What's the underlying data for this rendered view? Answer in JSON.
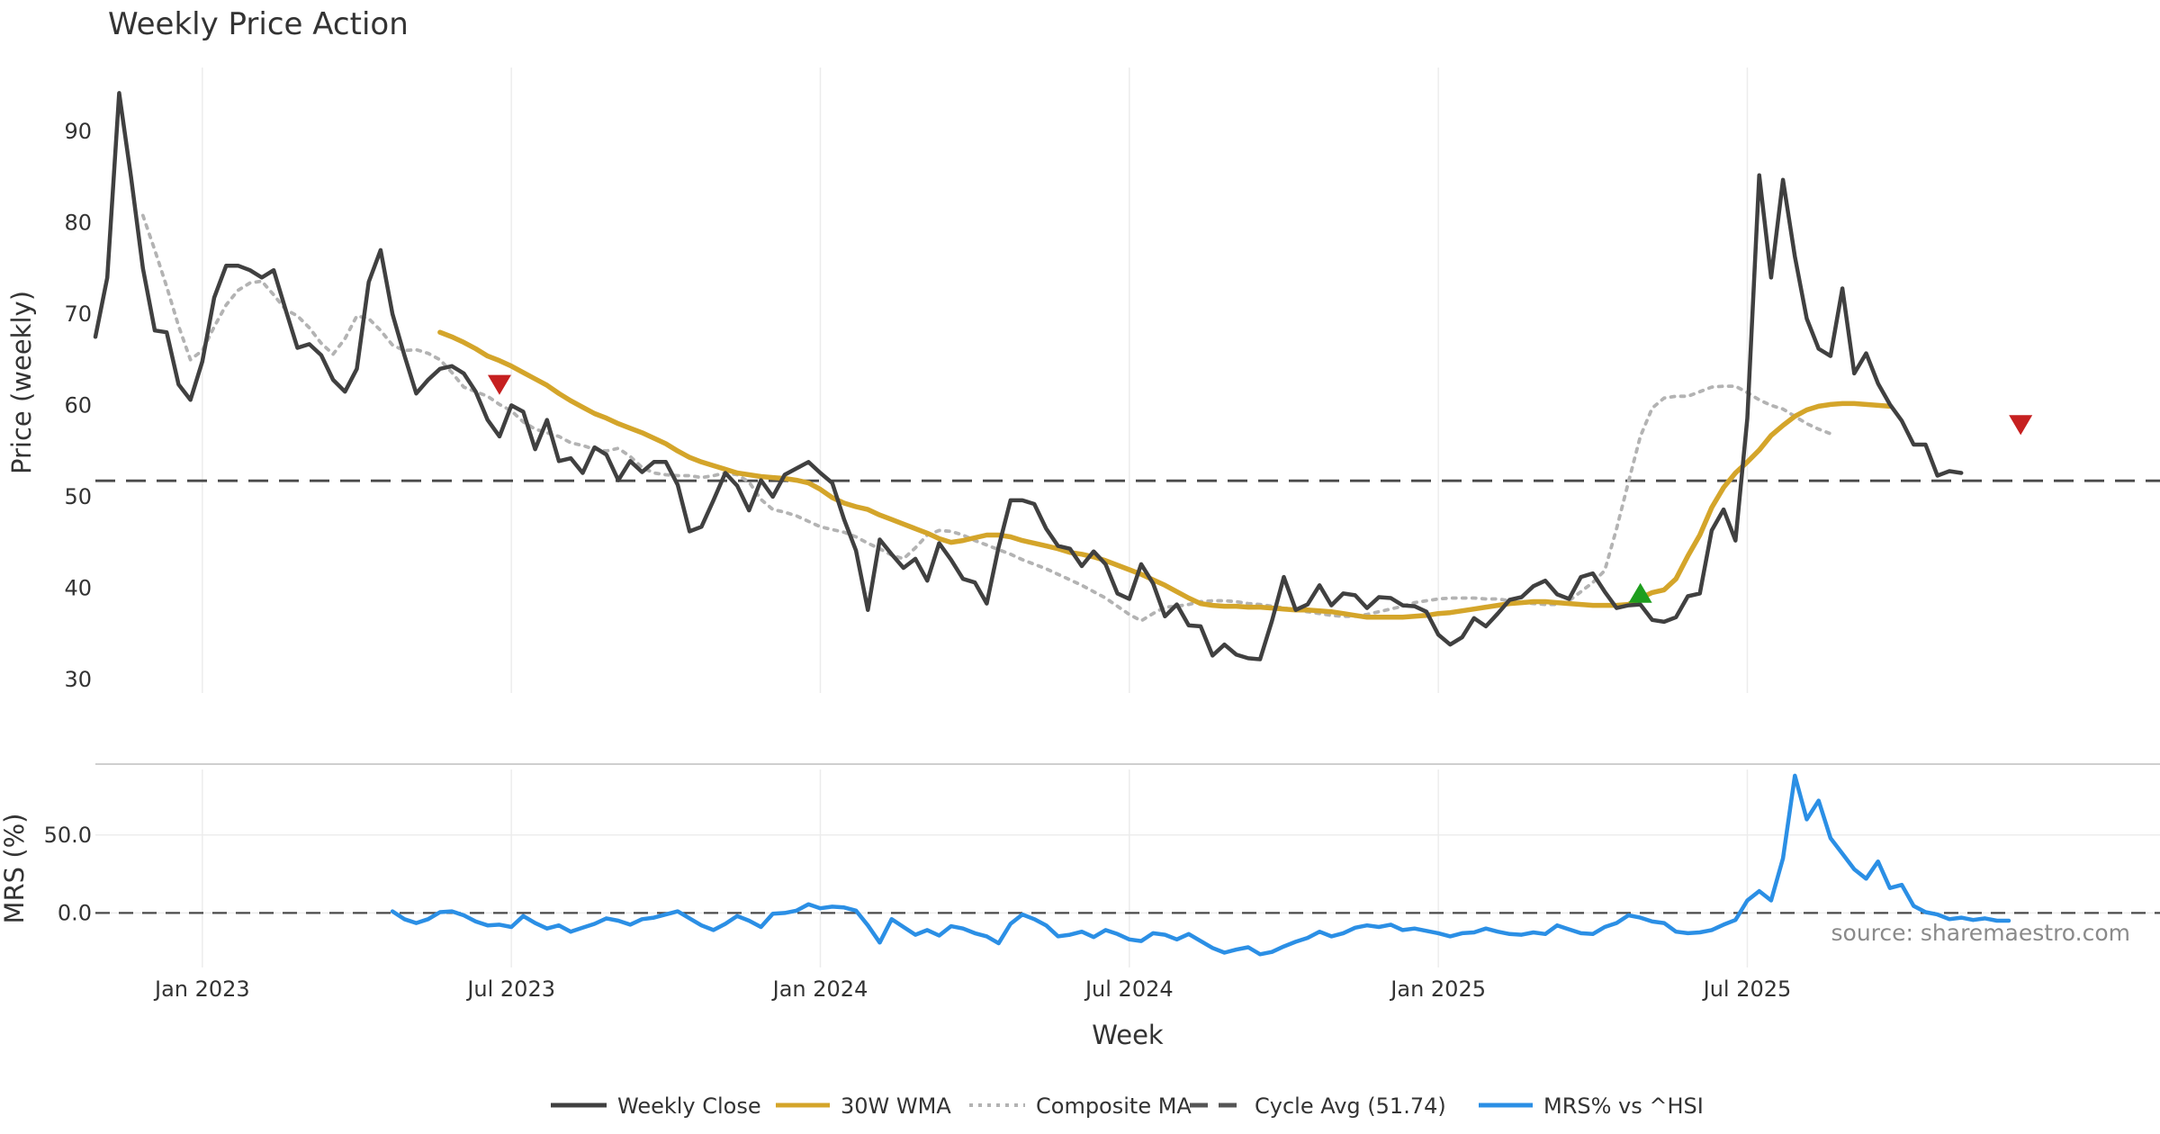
{
  "chart_data": {
    "type": "line",
    "title": "Weekly Price Action",
    "xlabel": "Week",
    "source": "source: sharemaestro.com",
    "price_panel": {
      "ylabel": "Price (weekly)",
      "ylim": [
        28.5,
        97
      ],
      "yticks": [
        30,
        40,
        50,
        60,
        70,
        80,
        90
      ],
      "cycle_avg": 51.74,
      "series": [
        {
          "name": "Weekly Close",
          "color": "#404040",
          "style": "solid",
          "start_week": 0,
          "values": [
            67.5,
            74.0,
            94.2,
            85.0,
            75.0,
            68.2,
            68.0,
            62.3,
            60.6,
            64.8,
            71.8,
            75.3,
            75.3,
            74.8,
            74.0,
            74.8,
            70.5,
            66.3,
            66.7,
            65.5,
            62.8,
            61.5,
            64.0,
            73.5,
            77.0,
            70.0,
            65.5,
            61.3,
            62.8,
            64.0,
            64.3,
            63.5,
            61.5,
            58.4,
            56.6,
            60.0,
            59.3,
            55.2,
            58.4,
            53.9,
            54.2,
            52.6,
            55.4,
            54.6,
            51.8,
            53.9,
            52.7,
            53.8,
            53.8,
            51.3,
            46.2,
            46.7,
            49.6,
            52.6,
            51.2,
            48.5,
            51.8,
            50.0,
            52.4,
            53.1,
            53.8,
            52.6,
            51.5,
            47.5,
            44.1,
            37.6,
            45.3,
            43.7,
            42.2,
            43.2,
            40.8,
            44.9,
            43.1,
            41.0,
            40.6,
            38.3,
            44.5,
            49.6,
            49.6,
            49.2,
            46.5,
            44.6,
            44.3,
            42.4,
            44.0,
            42.6,
            39.4,
            38.8,
            42.6,
            40.5,
            36.9,
            38.2,
            35.9,
            35.8,
            32.6,
            33.8,
            32.7,
            32.3,
            32.2,
            36.4,
            41.2,
            37.6,
            38.2,
            40.3,
            38.1,
            39.4,
            39.2,
            37.8,
            39.0,
            38.9,
            38.1,
            38.0,
            37.4,
            34.9,
            33.8,
            34.6,
            36.7,
            35.8,
            37.2,
            38.7,
            39.0,
            40.2,
            40.8,
            39.3,
            38.8,
            41.2,
            41.6,
            39.6,
            37.8,
            38.1,
            38.2,
            36.5,
            36.3,
            36.8,
            39.1,
            39.4,
            46.3,
            48.6,
            45.2,
            58.6,
            85.2,
            74.0,
            84.7,
            76.3,
            69.5,
            66.2,
            65.4,
            72.8,
            63.5,
            65.7,
            62.4,
            60.1,
            58.3,
            55.7,
            55.7,
            52.3,
            52.8,
            52.6
          ]
        },
        {
          "name": "30W WMA",
          "color": "#d4a52a",
          "style": "solid",
          "start_week": 29,
          "values": [
            68.0,
            67.5,
            66.9,
            66.2,
            65.4,
            64.9,
            64.3,
            63.6,
            62.9,
            62.2,
            61.3,
            60.5,
            59.8,
            59.1,
            58.6,
            58.0,
            57.5,
            57.0,
            56.4,
            55.8,
            55.0,
            54.3,
            53.8,
            53.4,
            53.0,
            52.6,
            52.4,
            52.2,
            52.1,
            52.0,
            51.8,
            51.5,
            50.8,
            49.9,
            49.3,
            48.9,
            48.6,
            48.0,
            47.5,
            47.0,
            46.5,
            46.0,
            45.4,
            45.0,
            45.2,
            45.5,
            45.8,
            45.8,
            45.6,
            45.2,
            44.9,
            44.6,
            44.3,
            43.9,
            43.7,
            43.4,
            43.0,
            42.5,
            42.0,
            41.5,
            40.9,
            40.3,
            39.6,
            38.9,
            38.3,
            38.1,
            38.0,
            38.0,
            37.9,
            37.9,
            37.8,
            37.7,
            37.6,
            37.6,
            37.5,
            37.4,
            37.2,
            37.0,
            36.8,
            36.8,
            36.8,
            36.8,
            36.9,
            37.0,
            37.2,
            37.3,
            37.5,
            37.7,
            37.9,
            38.1,
            38.3,
            38.4,
            38.5,
            38.5,
            38.4,
            38.3,
            38.2,
            38.1,
            38.1,
            38.1,
            38.2,
            38.9,
            39.5,
            39.8,
            41.0,
            43.5,
            45.8,
            48.8,
            51.0,
            52.6,
            53.8,
            55.1,
            56.7,
            57.8,
            58.8,
            59.5,
            59.9,
            60.1,
            60.2,
            60.2,
            60.1,
            60.0,
            59.9
          ]
        },
        {
          "name": "Composite MA",
          "color": "#b3b3b3",
          "style": "dotted",
          "start_week": 4,
          "values": [
            80.8,
            77.0,
            73.0,
            68.7,
            65.0,
            66.0,
            68.6,
            71.0,
            72.6,
            73.4,
            73.6,
            72.1,
            70.5,
            69.8,
            68.5,
            66.8,
            65.6,
            67.3,
            69.8,
            69.5,
            68.2,
            66.6,
            66.0,
            66.1,
            65.7,
            65.0,
            63.6,
            62.0,
            61.5,
            61.0,
            60.1,
            59.4,
            58.2,
            57.4,
            57.0,
            56.6,
            55.9,
            55.6,
            55.2,
            55.0,
            55.3,
            54.4,
            53.2,
            52.6,
            52.4,
            52.3,
            52.3,
            52.1,
            52.3,
            52.6,
            52.4,
            51.6,
            49.7,
            48.6,
            48.3,
            47.9,
            47.3,
            46.7,
            46.4,
            46.1,
            45.6,
            44.9,
            44.3,
            43.6,
            43.2,
            44.4,
            45.8,
            46.3,
            46.2,
            45.8,
            45.2,
            44.7,
            44.2,
            43.7,
            43.1,
            42.6,
            42.1,
            41.5,
            40.9,
            40.3,
            39.6,
            38.9,
            38.0,
            37.1,
            36.4,
            37.2,
            37.9,
            38.0,
            38.2,
            38.5,
            38.6,
            38.6,
            38.5,
            38.3,
            38.2,
            38.0,
            37.8,
            37.6,
            37.4,
            37.2,
            37.0,
            36.9,
            36.9,
            37.1,
            37.4,
            37.7,
            38.0,
            38.4,
            38.6,
            38.8,
            38.9,
            38.9,
            38.9,
            38.8,
            38.8,
            38.6,
            38.4,
            38.3,
            38.2,
            38.2,
            38.6,
            39.6,
            40.6,
            41.9,
            46.5,
            51.6,
            56.6,
            59.7,
            60.8,
            61.0,
            61.0,
            61.5,
            62.0,
            62.1,
            62.1,
            61.4,
            60.6,
            60.0,
            59.6,
            58.8,
            58.0,
            57.4,
            56.9
          ]
        }
      ],
      "markers": [
        {
          "type": "sell",
          "week": 34,
          "value": 62.3,
          "color": "#c62020"
        },
        {
          "type": "buy",
          "week": 130,
          "value": 39.4,
          "color": "#1e9e1e"
        },
        {
          "type": "sell",
          "week": 162,
          "value": 57.9,
          "color": "#c62020"
        }
      ]
    },
    "mrs_panel": {
      "ylabel": "MRS (%)",
      "ylim": [
        -35,
        92
      ],
      "yticks": [
        0.0,
        50.0
      ],
      "ytick_labels": [
        "0.0",
        "50.0"
      ],
      "series": [
        {
          "name": "MRS% vs ^HSI",
          "color": "#2b8fe5",
          "style": "solid",
          "start_week": 25,
          "values": [
            1.0,
            -4.0,
            -6.5,
            -4.0,
            0.5,
            1.0,
            -1.5,
            -5.5,
            -8.0,
            -7.5,
            -9.0,
            -2.0,
            -6.5,
            -10.0,
            -8.0,
            -12.0,
            -9.5,
            -7.0,
            -3.5,
            -5.0,
            -7.5,
            -4.0,
            -3.0,
            -1.0,
            1.0,
            -3.5,
            -8.0,
            -11.0,
            -7.0,
            -2.0,
            -5.0,
            -9.0,
            -0.5,
            0.0,
            1.5,
            5.5,
            3.0,
            4.0,
            3.5,
            1.5,
            -8.0,
            -19.0,
            -4.0,
            -9.0,
            -14.0,
            -11.0,
            -14.5,
            -8.5,
            -10.0,
            -13.0,
            -15.0,
            -19.5,
            -7.0,
            -1.0,
            -4.0,
            -8.0,
            -15.0,
            -14.0,
            -12.0,
            -15.5,
            -11.0,
            -13.5,
            -17.0,
            -18.0,
            -13.0,
            -14.0,
            -17.0,
            -13.5,
            -18.0,
            -22.5,
            -25.5,
            -23.5,
            -22.0,
            -26.5,
            -25.0,
            -21.5,
            -18.5,
            -16.0,
            -12.0,
            -15.0,
            -13.0,
            -9.5,
            -8.0,
            -9.0,
            -7.5,
            -11.0,
            -10.0,
            -11.5,
            -13.0,
            -15.0,
            -13.0,
            -12.5,
            -10.0,
            -12.0,
            -13.5,
            -14.0,
            -12.5,
            -13.5,
            -8.0,
            -10.5,
            -13.0,
            -13.5,
            -9.0,
            -6.5,
            -1.5,
            -3.0,
            -5.5,
            -6.5,
            -12.0,
            -13.0,
            -12.5,
            -11.0,
            -7.5,
            -4.5,
            8.0,
            14.0,
            8.0,
            35.0,
            88.0,
            60.0,
            72.0,
            48.0,
            38.0,
            28.0,
            22.0,
            33.0,
            16.0,
            18.0,
            4.5,
            0.5,
            -1.0,
            -4.0,
            -3.0,
            -4.5,
            -3.5,
            -5.0,
            -5.0
          ]
        }
      ]
    },
    "x_axis": {
      "total_weeks": 167,
      "ticks": [
        {
          "label": "Jan 2023",
          "week": 9
        },
        {
          "label": "Jul 2023",
          "week": 35
        },
        {
          "label": "Jan 2024",
          "week": 61
        },
        {
          "label": "Jul 2024",
          "week": 87
        },
        {
          "label": "Jan 2025",
          "week": 113
        },
        {
          "label": "Jul 2025",
          "week": 139
        }
      ]
    },
    "legend": [
      {
        "label": "Weekly Close",
        "color": "#404040",
        "style": "solid"
      },
      {
        "label": "30W WMA",
        "color": "#d4a52a",
        "style": "solid"
      },
      {
        "label": "Composite MA",
        "color": "#b3b3b3",
        "style": "dotted"
      },
      {
        "label": "Cycle Avg (51.74)",
        "color": "#555555",
        "style": "dashed"
      },
      {
        "label": "MRS% vs ^HSI",
        "color": "#2b8fe5",
        "style": "solid"
      }
    ]
  }
}
